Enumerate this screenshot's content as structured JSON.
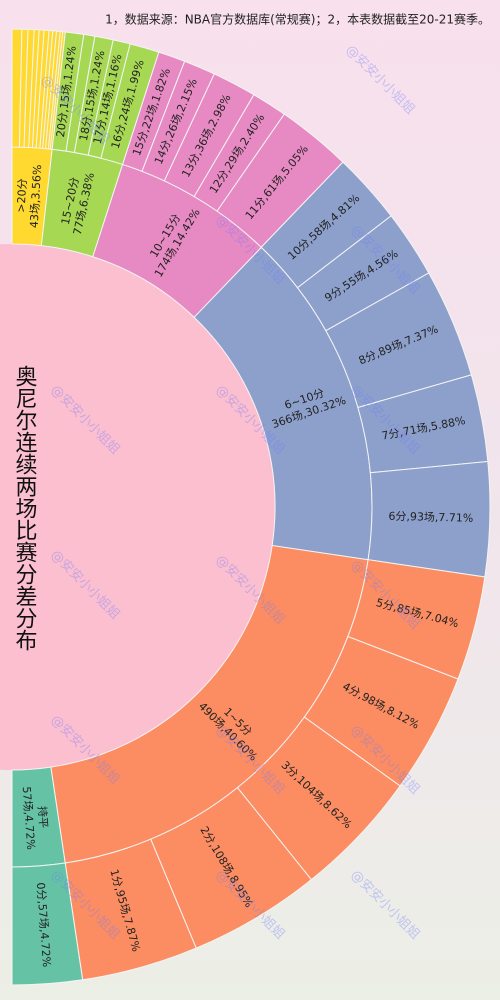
{
  "chart_data": {
    "type": "sunburst",
    "title": "奥尼尔连续两场比赛分差分布",
    "note": "1，数据来源：NBA官方数据库(常规赛)；2，本表数据截至20-21赛季。",
    "watermark": "@安安小小姐姐",
    "groups": [
      {
        "name": ">20分",
        "label": "43场,3.56%",
        "value": 3.56,
        "color": "#ffd92f",
        "children": [
          {
            "label": null,
            "value": 0.66
          },
          {
            "label": null,
            "value": 0.41
          },
          {
            "label": null,
            "value": 0.41
          },
          {
            "label": null,
            "value": 0.33
          },
          {
            "label": null,
            "value": 0.33
          },
          {
            "label": null,
            "value": 0.33
          },
          {
            "label": null,
            "value": 0.25
          },
          {
            "label": null,
            "value": 0.25
          },
          {
            "label": null,
            "value": 0.25
          },
          {
            "label": null,
            "value": 0.17
          },
          {
            "label": null,
            "value": 0.17
          }
        ]
      },
      {
        "name": "15~20分",
        "label": "77场,6.38%",
        "value": 6.38,
        "color": "#a6d854",
        "children": [
          {
            "label": "20分,15场,1.24%",
            "value": 1.24
          },
          {
            "label": null,
            "value": 0.75
          },
          {
            "label": "18分,15场,1.24%",
            "value": 1.24
          },
          {
            "label": "17分,14场,1.16%",
            "value": 1.16
          },
          {
            "label": "16分,24场,1.99%",
            "value": 1.99
          }
        ]
      },
      {
        "name": "10~15分",
        "label": "174场,14.42%",
        "value": 14.42,
        "color": "#e78ac3",
        "children": [
          {
            "label": "15分,22场,1.82%",
            "value": 1.82
          },
          {
            "label": "14分,26场,2.15%",
            "value": 2.15
          },
          {
            "label": "13分,36场,2.98%",
            "value": 2.98
          },
          {
            "label": "12分,29场,2.40%",
            "value": 2.4
          },
          {
            "label": "11分,61场,5.05%",
            "value": 5.05
          }
        ]
      },
      {
        "name": "6~10分",
        "label": "366场,30.32%",
        "value": 30.32,
        "color": "#8da0cb",
        "children": [
          {
            "label": "10分,58场,4.81%",
            "value": 4.81
          },
          {
            "label": "9分,55场,4.56%",
            "value": 4.56
          },
          {
            "label": "8分,89场,7.37%",
            "value": 7.37
          },
          {
            "label": "7分,71场,5.88%",
            "value": 5.88
          },
          {
            "label": "6分,93场,7.71%",
            "value": 7.71
          }
        ]
      },
      {
        "name": "1~5分",
        "label": "490场,40.60%",
        "value": 40.6,
        "color": "#fc8d62",
        "children": [
          {
            "label": "5分,85场,7.04%",
            "value": 7.04
          },
          {
            "label": "4分,98场,8.12%",
            "value": 8.12
          },
          {
            "label": "3分,104场,8.62%",
            "value": 8.62
          },
          {
            "label": "2分,108场,8.95%",
            "value": 8.95
          },
          {
            "label": "1分,95场,7.87%",
            "value": 7.87
          }
        ]
      },
      {
        "name": "持平",
        "label": "57场,4.72%",
        "value": 4.72,
        "color": "#66c2a5",
        "children": [
          {
            "label": "0分,57场,4.72%",
            "value": 4.72
          }
        ]
      }
    ]
  }
}
